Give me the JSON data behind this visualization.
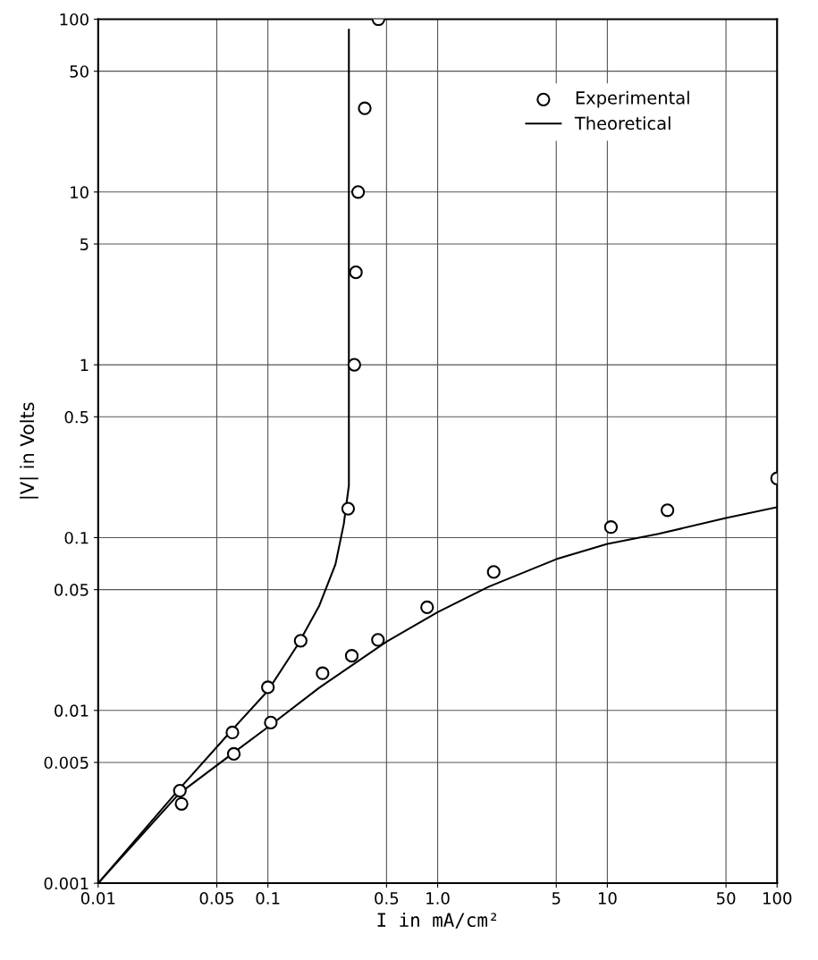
{
  "chart_data": {
    "type": "scatter",
    "xlabel": "I in mA/cm²",
    "ylabel": "|V| in Volts",
    "log": "xy",
    "grid": true,
    "legend": "top right",
    "xlim": [
      0.01,
      100
    ],
    "ylim": [
      0.001,
      100
    ],
    "xticks": [
      0.01,
      0.05,
      0.1,
      0.5,
      {
        "value": 1,
        "label": "1.0"
      },
      5,
      10,
      50,
      100
    ],
    "yticks": [
      0.001,
      0.005,
      0.01,
      0.05,
      0.1,
      0.5,
      1,
      5,
      10,
      50,
      100
    ],
    "series": [
      {
        "name": "Experimental",
        "marker": "circle",
        "color": "#000000",
        "x": [
          0.0303,
          0.031,
          0.0618,
          0.063,
          0.1,
          0.104,
          0.156,
          0.21,
          0.312,
          0.445,
          0.867,
          2.14,
          10.5,
          22.6,
          100,
          0.297,
          0.323,
          0.33,
          0.34,
          0.372,
          0.448
        ],
        "values": [
          0.00343,
          0.00288,
          0.00745,
          0.0056,
          0.0136,
          0.0085,
          0.0253,
          0.0164,
          0.0207,
          0.0256,
          0.0395,
          0.0633,
          0.115,
          0.144,
          0.22,
          0.147,
          1.0,
          3.43,
          10,
          30.5,
          100
        ]
      },
      {
        "name": "Theoretical",
        "type": "line",
        "color": "#000000",
        "x": [
          0.01,
          0.03,
          0.06,
          0.1,
          0.2,
          0.5,
          1,
          2,
          5,
          10,
          20,
          50,
          100
        ],
        "values": [
          0.001,
          0.0033,
          0.0055,
          0.008,
          0.0135,
          0.025,
          0.037,
          0.052,
          0.075,
          0.092,
          0.105,
          0.13,
          0.15
        ]
      },
      {
        "type": "line",
        "color": "#000000",
        "x": [
          0.01,
          0.03,
          0.06,
          0.1,
          0.15,
          0.2,
          0.25,
          0.28,
          0.3,
          0.3,
          0.3,
          0.3
        ],
        "values": [
          0.001,
          0.0035,
          0.0075,
          0.013,
          0.024,
          0.04,
          0.07,
          0.12,
          0.2,
          1,
          10,
          87
        ]
      }
    ]
  }
}
